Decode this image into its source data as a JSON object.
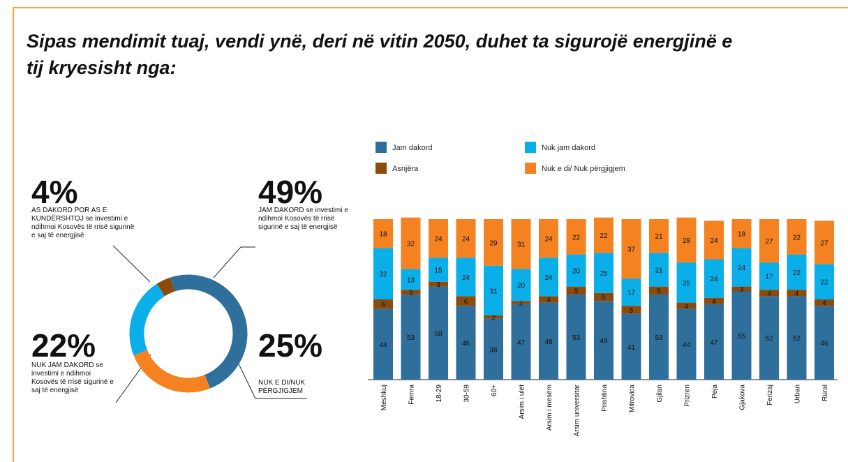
{
  "title": "Sipas mendimit tuaj, vendi ynë, deri në vitin 2050, duhet ta sigurojë energjinë e tij kryesisht nga:",
  "chart_data": [
    {
      "type": "pie",
      "categories": [
        "JAM DAKORD se investimi e ndihmoi Kosovës të rrisë sigurinë e saj të energjisë",
        "NUK E DI/NUK PËRGJIGJEM",
        "NUK JAM DAKORD se investimi e ndihmoi Kosovës të rrisë sigurinë e saj të energjisë",
        "AS DAKORD POR AS E KUNDËRSHTOJ se investimi e ndihmoi Kosovës të rrisë sigurinë e saj të energjisë"
      ],
      "values": [
        49,
        25,
        22,
        4
      ],
      "value_labels": [
        "49%",
        "25%",
        "22%",
        "4%"
      ],
      "colors": [
        "#2f6f9b",
        "#f58220",
        "#0aaee8",
        "#8a4b0c"
      ]
    },
    {
      "type": "bar",
      "stacked": true,
      "categories": [
        "Meshkuj",
        "Femra",
        "18-29",
        "30-59",
        "60+",
        "Arsim i ulët",
        "Arsim i mesëm",
        "Arsim universitar",
        "Prishtina",
        "Mitrovica",
        "Gjilan",
        "Prizren",
        "Peja",
        "Gjakova",
        "Ferizaj",
        "Urban",
        "Rural"
      ],
      "series": [
        {
          "name": "Jam dakord",
          "color": "#2f6f9b",
          "values": [
            44,
            53,
            58,
            46,
            38,
            47,
            48,
            53,
            49,
            41,
            53,
            44,
            47,
            55,
            52,
            52,
            46
          ]
        },
        {
          "name": "Asnjëra",
          "color": "#8a4b0c",
          "values": [
            6,
            3,
            3,
            6,
            2,
            2,
            4,
            5,
            5,
            5,
            5,
            4,
            4,
            3,
            4,
            4,
            4
          ]
        },
        {
          "name": "Nuk jam dakord",
          "color": "#0aaee8",
          "values": [
            32,
            13,
            15,
            24,
            31,
            20,
            24,
            20,
            25,
            17,
            21,
            25,
            24,
            24,
            17,
            22,
            22
          ]
        },
        {
          "name": "Nuk e di/ Nuk përgjigjem",
          "color": "#f58220",
          "values": [
            18,
            32,
            24,
            24,
            29,
            31,
            24,
            22,
            22,
            37,
            21,
            28,
            24,
            18,
            27,
            22,
            27
          ]
        }
      ],
      "ylim": [
        0,
        100
      ]
    }
  ]
}
